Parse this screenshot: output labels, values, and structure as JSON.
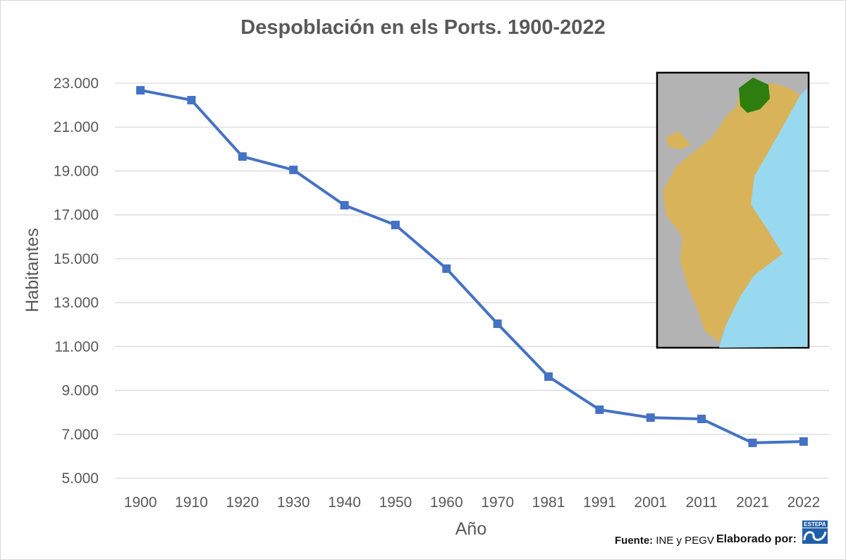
{
  "chart_data": {
    "type": "line",
    "title": "Despoblación en els Ports. 1900-2022",
    "xlabel": "Año",
    "ylabel": "Habitantes",
    "categories": [
      "1900",
      "1910",
      "1920",
      "1930",
      "1940",
      "1950",
      "1960",
      "1970",
      "1981",
      "1991",
      "2001",
      "2011",
      "2021",
      "2022"
    ],
    "series": [
      {
        "values": [
          22680,
          22230,
          19660,
          19050,
          17440,
          16540,
          14550,
          12040,
          9630,
          8120,
          7760,
          7700,
          6610,
          6670
        ]
      }
    ],
    "ylim": [
      5000,
      23000
    ],
    "yticks": [
      5000,
      7000,
      9000,
      11000,
      13000,
      15000,
      17000,
      19000,
      21000,
      23000
    ],
    "ytick_labels": [
      "5.000",
      "7.000",
      "9.000",
      "11.000",
      "13.000",
      "15.000",
      "17.000",
      "19.000",
      "21.000",
      "23.000"
    ],
    "grid": true,
    "legend": "none",
    "line_color": "#4472c4",
    "marker": "square"
  },
  "inset_map": {
    "highlight_color": "#2e7d0f",
    "sea_color": "#99d9ef",
    "background_color": "#b3b3b3"
  },
  "footer": {
    "source_label": "Fuente:",
    "source_value": "INE y PEGV",
    "made_by": "Elaborado por:",
    "logo_text": "ESTEPA"
  }
}
